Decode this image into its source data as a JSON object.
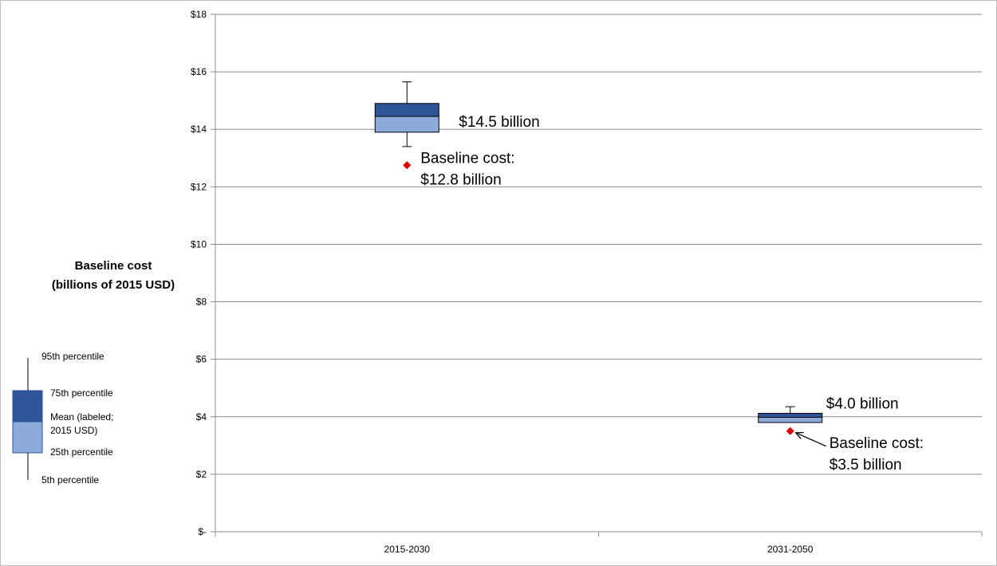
{
  "chart_data": {
    "type": "box",
    "y_axis": {
      "ylim": [
        0,
        18
      ],
      "ticks": [
        0,
        2,
        4,
        6,
        8,
        10,
        12,
        14,
        16,
        18
      ],
      "tick_labels": [
        "$-",
        "$2",
        "$4",
        "$6",
        "$8",
        "$10",
        "$12",
        "$14",
        "$16",
        "$18"
      ],
      "gridlines": true
    },
    "categories": [
      "2015-2030",
      "2031-2050"
    ],
    "boxes": [
      {
        "category": "2015-2030",
        "p5": 13.4,
        "p25": 13.9,
        "mean": 14.45,
        "p75": 14.9,
        "p95": 15.65,
        "mean_label": "$14.5 billion",
        "baseline": 12.75,
        "baseline_label_1": "Baseline cost:",
        "baseline_label_2": "$12.8 billion"
      },
      {
        "category": "2031-2050",
        "p5": 3.8,
        "p25": 3.8,
        "mean": 3.98,
        "p75": 4.12,
        "p95": 4.35,
        "mean_label": "$4.0 billion",
        "baseline": 3.5,
        "baseline_label_1": "Baseline cost:",
        "baseline_label_2": "$3.5 billion"
      }
    ],
    "legend": {
      "title_1": "Baseline cost",
      "title_2": "(billions of 2015 USD)",
      "p95": "95th percentile",
      "p75": "75th percentile",
      "mean_1": "Mean (labeled;",
      "mean_2": "2015 USD)",
      "p25": "25th percentile",
      "p5": "5th percentile",
      "placement": "left"
    },
    "colors": {
      "upper_box": "#2e5597",
      "lower_box": "#8eaadb",
      "baseline_marker": "#e00000",
      "grid": "#8c8c8c",
      "box_outline": "#000000"
    }
  }
}
